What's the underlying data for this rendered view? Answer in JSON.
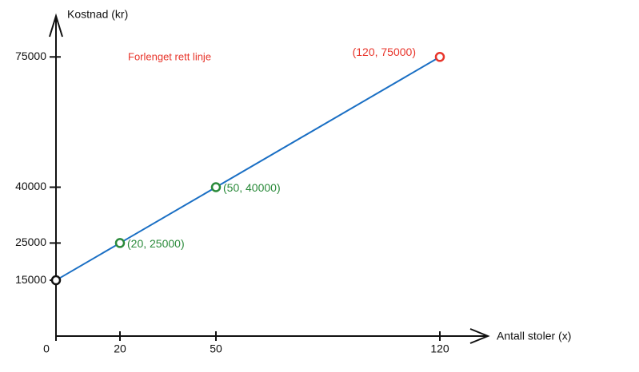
{
  "chart_data": {
    "type": "line",
    "x_label": "Antall stoler (x)",
    "y_label": "Kostnad (kr)",
    "annotation": "Forlenget rett linje",
    "annotation_color": "#e8352b",
    "x": [
      0,
      20,
      50,
      120
    ],
    "series": [
      {
        "color": "#1a6fc4",
        "values": [
          15000,
          25000,
          40000,
          75000
        ]
      }
    ],
    "point_colors": [
      "#111111",
      "#2a8a3a",
      "#2a8a3a",
      "#e8352b"
    ],
    "point_labels": [
      null,
      "(20, 25000)",
      "(50, 40000)",
      "(120, 75000)"
    ],
    "xlim": [
      0,
      135
    ],
    "ylim": [
      0,
      86000
    ],
    "xticks": [
      0,
      20,
      50,
      120
    ],
    "yticks": [
      15000,
      25000,
      40000,
      75000
    ]
  }
}
